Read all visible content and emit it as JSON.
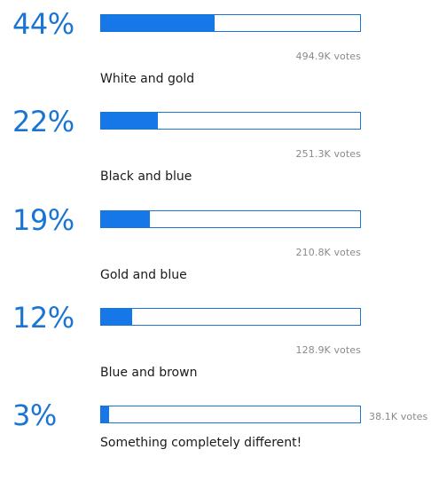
{
  "poll": {
    "options": [
      {
        "percent_label": "44%",
        "fraction": 0.44,
        "votes_label": "494.9K votes",
        "label": "White and gold"
      },
      {
        "percent_label": "22%",
        "fraction": 0.22,
        "votes_label": "251.3K votes",
        "label": "Black and blue"
      },
      {
        "percent_label": "19%",
        "fraction": 0.19,
        "votes_label": "210.8K votes",
        "label": "Gold and blue"
      },
      {
        "percent_label": "12%",
        "fraction": 0.12,
        "votes_label": "128.9K votes",
        "label": "Blue and brown"
      },
      {
        "percent_label": "3%",
        "fraction": 0.03,
        "votes_label": "38.1K votes",
        "label": "Something completely different!"
      }
    ]
  },
  "colors": {
    "accent": "#1a75d2",
    "bar_fill": "#1577e8",
    "votes_text": "#8a8a8a",
    "label_text": "#1a1a1a"
  }
}
